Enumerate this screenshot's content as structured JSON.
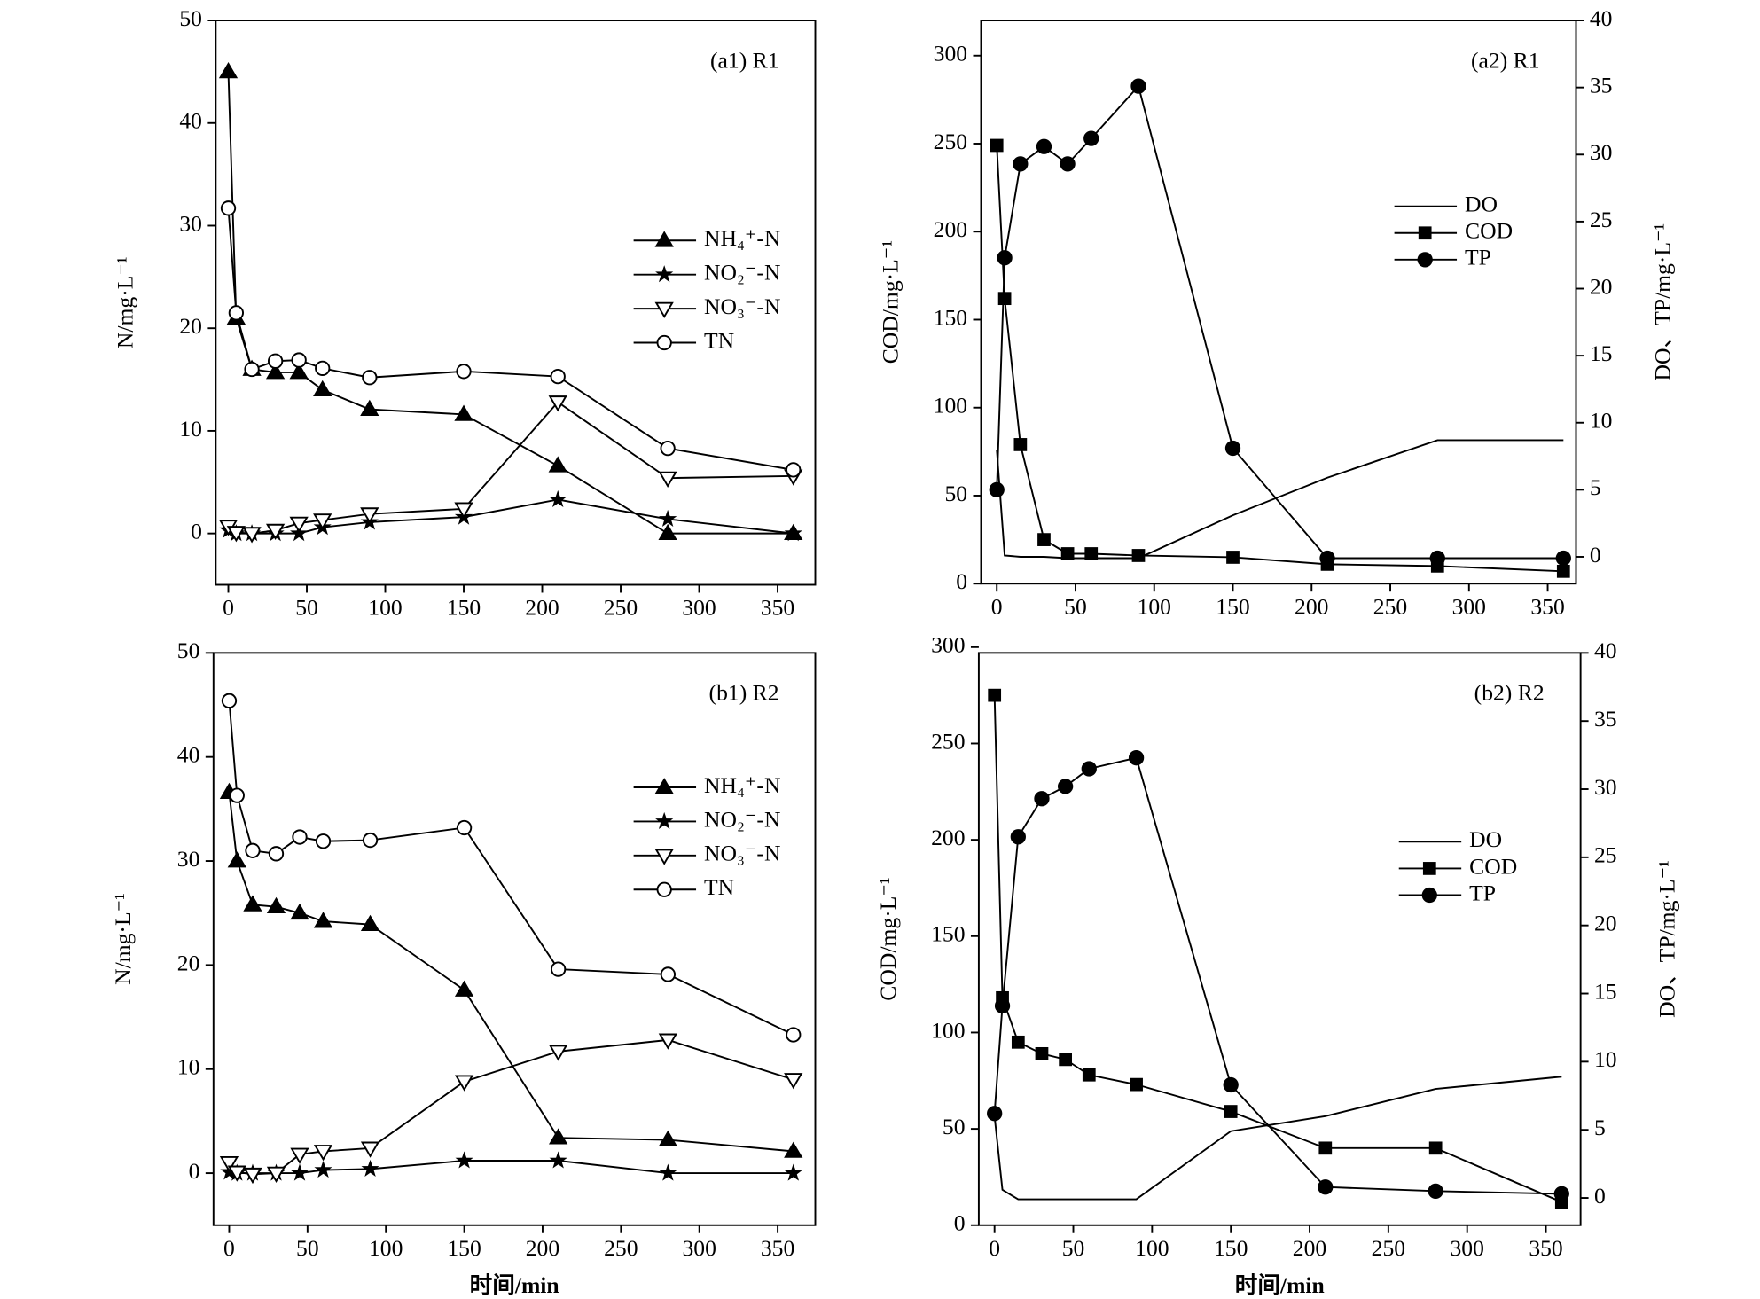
{
  "chart_data": [
    {
      "type": "line",
      "panel_label": "(a1) R1",
      "ylabel": "N/mg·L⁻¹",
      "x": [
        0,
        5,
        15,
        30,
        45,
        60,
        90,
        150,
        210,
        280,
        360
      ],
      "xlim": [
        -8,
        374
      ],
      "xticks": [
        0,
        50,
        100,
        150,
        200,
        250,
        300,
        350
      ],
      "ylim": [
        -5,
        50
      ],
      "yticks": [
        0,
        10,
        20,
        30,
        40,
        50
      ],
      "legend": "center right",
      "series": [
        {
          "name": "NH₄⁺-N",
          "color": "#000000",
          "marker": "triangle",
          "values": [
            45,
            21,
            16,
            15.7,
            15.7,
            14,
            12.1,
            11.6,
            6.6,
            0,
            0
          ]
        },
        {
          "name": "NO₂⁻-N",
          "color": "#000000",
          "marker": "star",
          "values": [
            0.3,
            0,
            0,
            0,
            0,
            0.6,
            1.1,
            1.6,
            3.3,
            1.4,
            0
          ]
        },
        {
          "name": "NO₃⁻-N",
          "color": "#000000",
          "marker": "triangle-down-open",
          "values": [
            0.7,
            0.1,
            0,
            0.3,
            1.0,
            1.3,
            1.9,
            2.4,
            12.8,
            5.4,
            5.6
          ]
        },
        {
          "name": "TN",
          "color": "#000000",
          "marker": "circle-open",
          "values": [
            31.7,
            21.5,
            16,
            16.8,
            16.9,
            16.1,
            15.2,
            15.8,
            15.3,
            8.3,
            6.2
          ]
        }
      ]
    },
    {
      "type": "line",
      "panel_label": "(a2) R1",
      "ylabel": "COD/mg·L⁻¹",
      "y2label": "DO、TP/mg·L⁻¹",
      "x": [
        0,
        5,
        15,
        30,
        45,
        60,
        90,
        150,
        210,
        280,
        360
      ],
      "xlim": [
        -10,
        368
      ],
      "xticks": [
        0,
        50,
        100,
        150,
        200,
        250,
        300,
        350
      ],
      "ylim": [
        0,
        320
      ],
      "yticks": [
        0,
        50,
        100,
        150,
        200,
        250,
        300
      ],
      "y2lim": [
        -2,
        40
      ],
      "y2ticks": [
        0,
        5,
        10,
        15,
        20,
        25,
        30,
        35,
        40
      ],
      "legend": "right",
      "series": [
        {
          "name": "DO",
          "color": "#000000",
          "marker": "none",
          "axis": "y2",
          "values": [
            8,
            0.1,
            0,
            0,
            -0.1,
            -0.1,
            -0.1,
            3.1,
            5.9,
            8.7,
            8.7
          ]
        },
        {
          "name": "COD",
          "color": "#000000",
          "marker": "square",
          "values": [
            249,
            162,
            79,
            25,
            17,
            17,
            16,
            15,
            11,
            10,
            7
          ]
        },
        {
          "name": "TP",
          "color": "#000000",
          "marker": "circle",
          "axis": "y2",
          "values": [
            5.0,
            22.3,
            29.3,
            30.6,
            29.3,
            31.2,
            35.1,
            8.1,
            -0.1,
            -0.1,
            -0.1
          ]
        }
      ]
    },
    {
      "type": "line",
      "panel_label": "(b1) R2",
      "ylabel": "N/mg·L⁻¹",
      "xlabel": "时间/min",
      "x": [
        0,
        5,
        15,
        30,
        45,
        60,
        90,
        150,
        210,
        280,
        360
      ],
      "xlim": [
        -10,
        374
      ],
      "xticks": [
        0,
        50,
        100,
        150,
        200,
        250,
        300,
        350
      ],
      "ylim": [
        -5,
        50
      ],
      "yticks": [
        0,
        10,
        20,
        30,
        40,
        50
      ],
      "legend": "upper right",
      "series": [
        {
          "name": "NH₄⁺-N",
          "color": "#000000",
          "marker": "triangle",
          "values": [
            36.6,
            30,
            25.8,
            25.6,
            25,
            24.2,
            23.9,
            17.6,
            3.4,
            3.2,
            2.1
          ]
        },
        {
          "name": "NO₂⁻-N",
          "color": "#000000",
          "marker": "star",
          "values": [
            0.1,
            0,
            0,
            0,
            0,
            0.3,
            0.4,
            1.2,
            1.2,
            0,
            0
          ]
        },
        {
          "name": "NO₃⁻-N",
          "color": "#000000",
          "marker": "triangle-down-open",
          "values": [
            1,
            0.1,
            -0.1,
            0,
            1.8,
            2.1,
            2.4,
            8.8,
            11.7,
            12.8,
            9.0
          ]
        },
        {
          "name": "TN",
          "color": "#000000",
          "marker": "circle-open",
          "values": [
            45.4,
            36.3,
            31,
            30.7,
            32.3,
            31.9,
            32,
            33.2,
            19.6,
            19.1,
            13.3
          ]
        }
      ]
    },
    {
      "type": "line",
      "panel_label": "(b2) R2",
      "ylabel": "COD/mg·L⁻¹",
      "y2label": "DO、TP/mg·L⁻¹",
      "xlabel": "时间/min",
      "x": [
        0,
        5,
        15,
        30,
        45,
        60,
        90,
        150,
        210,
        280,
        360
      ],
      "xlim": [
        -10,
        372
      ],
      "xticks": [
        0,
        50,
        100,
        150,
        200,
        250,
        300,
        350
      ],
      "ylim": [
        0,
        297
      ],
      "yticks": [
        0,
        50,
        100,
        150,
        200,
        250,
        300
      ],
      "y2lim": [
        -2,
        40
      ],
      "y2ticks": [
        0,
        5,
        10,
        15,
        20,
        25,
        30,
        35,
        40
      ],
      "legend": "right",
      "series": [
        {
          "name": "DO",
          "color": "#000000",
          "marker": "none",
          "axis": "y2",
          "values": [
            6,
            0.6,
            -0.1,
            -0.1,
            -0.1,
            -0.1,
            -0.1,
            4.9,
            6.0,
            8.0,
            8.9
          ]
        },
        {
          "name": "COD",
          "color": "#000000",
          "marker": "square",
          "values": [
            275,
            118,
            95,
            89,
            86,
            78,
            73,
            59,
            40,
            40,
            12
          ]
        },
        {
          "name": "TP",
          "color": "#000000",
          "marker": "circle",
          "axis": "y2",
          "values": [
            6.2,
            14.1,
            26.5,
            29.3,
            30.2,
            31.5,
            32.3,
            8.3,
            0.8,
            0.5,
            0.3
          ]
        }
      ]
    }
  ]
}
